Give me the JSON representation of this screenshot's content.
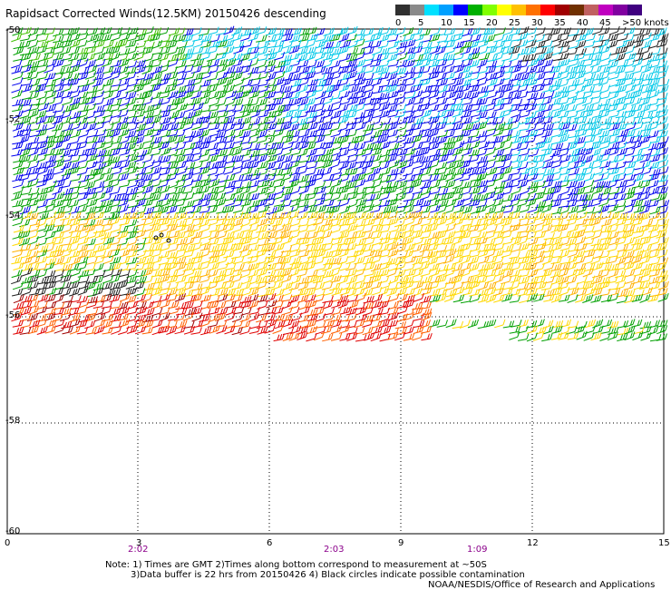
{
  "title": "Rapidsact Corrected Winds(12.5KM) 20150426 descending",
  "legend": {
    "labels": [
      "0",
      "5",
      "10",
      "15",
      "20",
      "25",
      "30",
      "35",
      "40",
      "45",
      ">50 knots"
    ],
    "colors": [
      "#303030",
      "#8a8a8a",
      "#00e0ff",
      "#00a0ff",
      "#0000ff",
      "#00b000",
      "#80ff00",
      "#ffff00",
      "#ffc000",
      "#ff7000",
      "#ff0000",
      "#a00000",
      "#703000",
      "#c06060",
      "#c000c0",
      "#8000a0",
      "#400080"
    ]
  },
  "map": {
    "lat_labels": [
      "-50",
      "-52",
      "-54",
      "-56",
      "-58",
      "-60"
    ],
    "lon_labels": [
      "0",
      "3",
      "6",
      "9",
      "12",
      "15"
    ],
    "times": [
      "2:02",
      "2:03",
      "1:09"
    ],
    "gridline_style": "dotted"
  },
  "notes": {
    "line1": "Note: 1) Times are GMT 2)Times along bottom correspond to measurement at ~50S",
    "line2": "3)Data buffer is 22 hrs from 20150426 4) Black circles indicate possible contamination",
    "line3": "NOAA/NESDIS/Office of Research and Applications"
  }
}
